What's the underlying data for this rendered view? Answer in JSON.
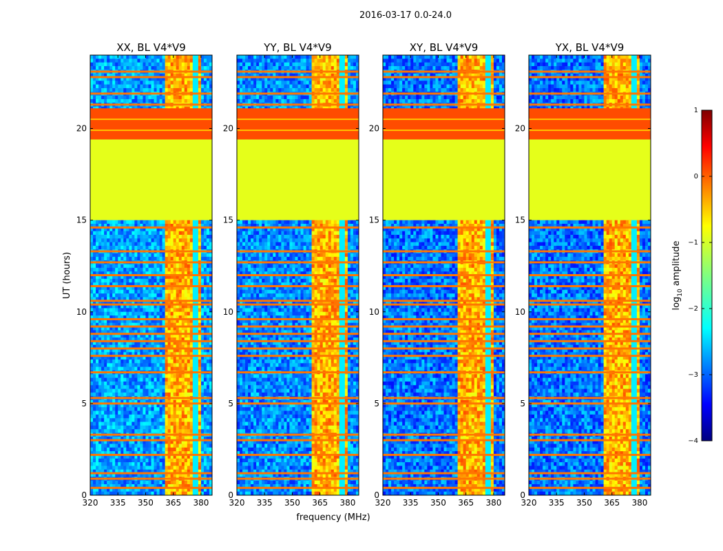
{
  "figure": {
    "suptitle": "2016-03-17 0.0-24.0",
    "xlabel": "frequency (MHz)",
    "ylabel": "UT (hours)",
    "colorbar_label_main": "log",
    "colorbar_label_sub": "10",
    "colorbar_label_rest": " amplitude"
  },
  "chart_data": {
    "type": "heatmap",
    "title": "2016-03-17 0.0-24.0",
    "xlabel": "frequency (MHz)",
    "ylabel": "UT (hours)",
    "xlim": [
      320,
      386
    ],
    "ylim": [
      0,
      24
    ],
    "xticks": [
      320,
      335,
      350,
      365,
      380
    ],
    "yticks": [
      0,
      5,
      10,
      15,
      20
    ],
    "colorbar": {
      "label": "log10 amplitude",
      "range": [
        -4,
        1
      ],
      "ticks": [
        -4,
        -3,
        -2,
        -1,
        0,
        1
      ]
    },
    "panels": [
      {
        "title": "XX, BL V4*V9",
        "baseline_log_amp": -2.6,
        "rfi_band_mhz": [
          361,
          380
        ],
        "flagged_hours": [
          15.0,
          19.4
        ],
        "flag_log_amp": -1.0,
        "saturated_hours": [
          19.4,
          21.1
        ],
        "saturated_log_amp": 0.0
      },
      {
        "title": "YY, BL V4*V9",
        "baseline_log_amp": -2.7,
        "rfi_band_mhz": [
          361,
          380
        ],
        "flagged_hours": [
          15.0,
          19.4
        ],
        "flag_log_amp": -1.0,
        "saturated_hours": [
          19.4,
          21.1
        ],
        "saturated_log_amp": 0.0
      },
      {
        "title": "XY, BL V4*V9",
        "baseline_log_amp": -2.8,
        "rfi_band_mhz": [
          361,
          380
        ],
        "flagged_hours": [
          15.0,
          19.4
        ],
        "flag_log_amp": -1.0,
        "saturated_hours": [
          19.4,
          21.1
        ],
        "saturated_log_amp": 0.0
      },
      {
        "title": "YX, BL V4*V9",
        "baseline_log_amp": -2.8,
        "rfi_band_mhz": [
          361,
          380
        ],
        "flagged_hours": [
          15.0,
          19.4
        ],
        "flag_log_amp": -1.0,
        "saturated_hours": [
          19.4,
          21.1
        ],
        "saturated_log_amp": 0.0
      }
    ],
    "rfi_time_lines_hours": [
      0.4,
      0.9,
      1.2,
      2.2,
      3.0,
      3.3,
      5.0,
      5.3,
      6.7,
      7.6,
      8.0,
      8.4,
      8.8,
      9.2,
      9.6,
      10.4,
      10.6,
      11.4,
      12.0,
      12.7,
      13.3,
      14.6,
      21.3,
      21.9,
      22.8,
      23.1
    ]
  }
}
